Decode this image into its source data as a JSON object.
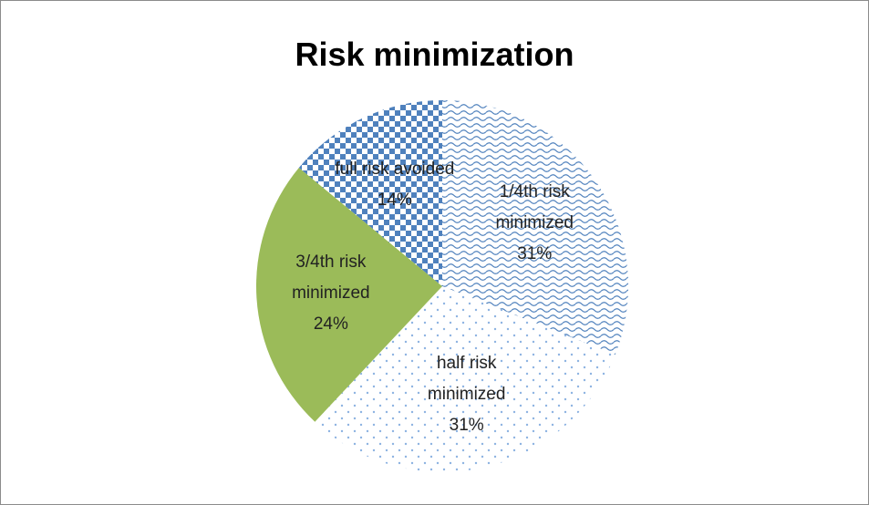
{
  "chart_data": {
    "type": "pie",
    "title": "Risk minimization",
    "categories": [
      "1/4th risk minimized",
      "half  risk minimized",
      "3/4th risk minimized",
      "full risk avoided"
    ],
    "values": [
      31,
      31,
      24,
      14
    ],
    "value_labels": [
      "31%",
      "31%",
      "24%",
      "14%"
    ],
    "colors": [
      "#4f81bd",
      "#8db3e2",
      "#9bbb59",
      "#4f81bd"
    ],
    "patterns": [
      "wave",
      "dots",
      "solid",
      "checker"
    ]
  }
}
